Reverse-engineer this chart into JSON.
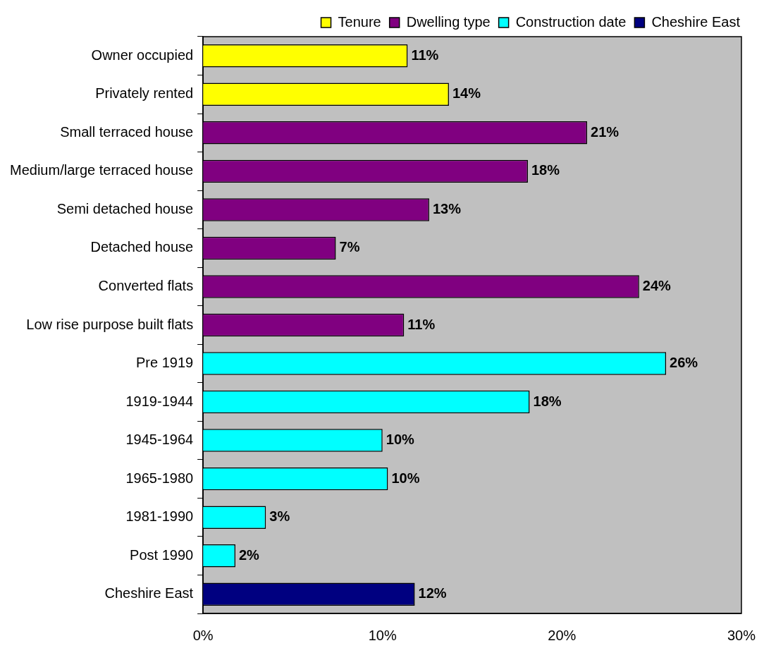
{
  "chart_data": {
    "type": "bar",
    "orientation": "horizontal",
    "stacked": true,
    "legend": "top right",
    "grid": false,
    "categories": [
      "Owner occupied",
      "Privately rented",
      "Small terraced house",
      "Medium/large terraced house",
      "Semi detached house",
      "Detached house",
      "Converted flats",
      "Low rise purpose built flats",
      "Pre 1919",
      "1919-1944",
      "1945-1964",
      "1965-1980",
      "1981-1990",
      "Post 1990",
      "Cheshire East"
    ],
    "series": [
      {
        "name": "Tenure",
        "color": "#ffff00",
        "values": [
          11.4,
          13.7,
          null,
          null,
          null,
          null,
          null,
          null,
          null,
          null,
          null,
          null,
          null,
          null,
          null
        ],
        "value_labels": [
          "11%",
          "14%",
          null,
          null,
          null,
          null,
          null,
          null,
          null,
          null,
          null,
          null,
          null,
          null,
          null
        ]
      },
      {
        "name": "Dwelling type",
        "color": "#800080",
        "values": [
          null,
          null,
          21.4,
          18.1,
          12.6,
          7.4,
          24.3,
          11.2,
          null,
          null,
          null,
          null,
          null,
          null,
          null
        ],
        "value_labels": [
          null,
          null,
          "21%",
          "18%",
          "13%",
          "7%",
          "24%",
          "11%",
          null,
          null,
          null,
          null,
          null,
          null,
          null
        ]
      },
      {
        "name": "Construction date",
        "color": "#00ffff",
        "values": [
          null,
          null,
          null,
          null,
          null,
          null,
          null,
          null,
          25.8,
          18.2,
          10.0,
          10.3,
          3.5,
          1.8,
          null
        ],
        "value_labels": [
          null,
          null,
          null,
          null,
          null,
          null,
          null,
          null,
          "26%",
          "18%",
          "10%",
          "10%",
          "3%",
          "2%",
          null
        ]
      },
      {
        "name": "Cheshire East",
        "color": "#000080",
        "values": [
          null,
          null,
          null,
          null,
          null,
          null,
          null,
          null,
          null,
          null,
          null,
          null,
          null,
          null,
          11.8
        ],
        "value_labels": [
          null,
          null,
          null,
          null,
          null,
          null,
          null,
          null,
          null,
          null,
          null,
          null,
          null,
          null,
          "12%"
        ]
      }
    ],
    "xlim": [
      0,
      30
    ],
    "xticks": [
      {
        "value": 0,
        "label": "0%"
      },
      {
        "value": 10,
        "label": "10%"
      },
      {
        "value": 20,
        "label": "20%"
      },
      {
        "value": 30,
        "label": "30%"
      }
    ]
  }
}
